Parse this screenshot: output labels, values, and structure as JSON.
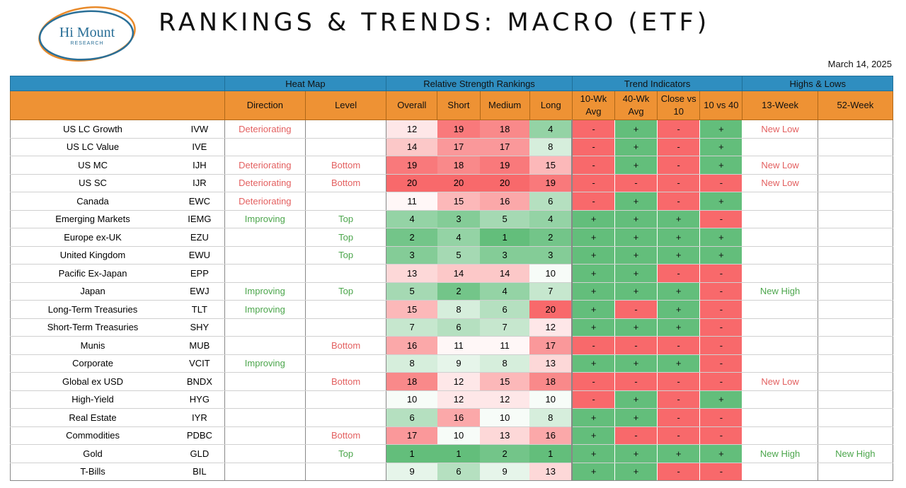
{
  "brand": {
    "logo_text": "Hi Mount",
    "logo_sub": "RESEARCH"
  },
  "title": "RANKINGS & TRENDS: MACRO (ETF)",
  "date": "March 14, 2025",
  "colors": {
    "header_blue": "#2f8ec0",
    "header_orange": "#ee9234",
    "positive_green": "#63be7b",
    "negative_red": "#f8696b",
    "text_positive": "#4ca64c",
    "text_negative": "#e36060"
  },
  "groups": {
    "heat_map": "Heat Map",
    "rs_rankings": "Relative Strength Rankings",
    "trend": "Trend Indicators",
    "highs_lows": "Highs & Lows"
  },
  "columns": {
    "direction": "Direction",
    "level": "Level",
    "overall": "Overall",
    "short": "Short",
    "medium": "Medium",
    "long": "Long",
    "wk10": "10-Wk Avg",
    "wk40": "40-Wk Avg",
    "close10": "Close vs 10",
    "t10v40": "10 vs 40",
    "week13": "13-Week",
    "week52": "52-Week"
  },
  "rank_scale": {
    "min": 1,
    "max": 20
  },
  "rows": [
    {
      "name": "US LC Growth",
      "ticker": "IVW",
      "direction": "Deteriorating",
      "level": "",
      "overall": 12,
      "short": 19,
      "medium": 18,
      "long": 4,
      "wk10": "-",
      "wk40": "+",
      "close10": "-",
      "t10v40": "+",
      "week13": "New Low",
      "week52": ""
    },
    {
      "name": "US LC Value",
      "ticker": "IVE",
      "direction": "",
      "level": "",
      "overall": 14,
      "short": 17,
      "medium": 17,
      "long": 8,
      "wk10": "-",
      "wk40": "+",
      "close10": "-",
      "t10v40": "+",
      "week13": "",
      "week52": ""
    },
    {
      "name": "US MC",
      "ticker": "IJH",
      "direction": "Deteriorating",
      "level": "Bottom",
      "overall": 19,
      "short": 18,
      "medium": 19,
      "long": 15,
      "wk10": "-",
      "wk40": "+",
      "close10": "-",
      "t10v40": "+",
      "week13": "New Low",
      "week52": ""
    },
    {
      "name": "US SC",
      "ticker": "IJR",
      "direction": "Deteriorating",
      "level": "Bottom",
      "overall": 20,
      "short": 20,
      "medium": 20,
      "long": 19,
      "wk10": "-",
      "wk40": "-",
      "close10": "-",
      "t10v40": "-",
      "week13": "New Low",
      "week52": ""
    },
    {
      "name": "Canada",
      "ticker": "EWC",
      "direction": "Deteriorating",
      "level": "",
      "overall": 11,
      "short": 15,
      "medium": 16,
      "long": 6,
      "wk10": "-",
      "wk40": "+",
      "close10": "-",
      "t10v40": "+",
      "week13": "",
      "week52": ""
    },
    {
      "name": "Emerging Markets",
      "ticker": "IEMG",
      "direction": "Improving",
      "level": "Top",
      "overall": 4,
      "short": 3,
      "medium": 5,
      "long": 4,
      "wk10": "+",
      "wk40": "+",
      "close10": "+",
      "t10v40": "-",
      "week13": "",
      "week52": ""
    },
    {
      "name": "Europe ex-UK",
      "ticker": "EZU",
      "direction": "",
      "level": "Top",
      "overall": 2,
      "short": 4,
      "medium": 1,
      "long": 2,
      "wk10": "+",
      "wk40": "+",
      "close10": "+",
      "t10v40": "+",
      "week13": "",
      "week52": ""
    },
    {
      "name": "United Kingdom",
      "ticker": "EWU",
      "direction": "",
      "level": "Top",
      "overall": 3,
      "short": 5,
      "medium": 3,
      "long": 3,
      "wk10": "+",
      "wk40": "+",
      "close10": "+",
      "t10v40": "+",
      "week13": "",
      "week52": ""
    },
    {
      "name": "Pacific Ex-Japan",
      "ticker": "EPP",
      "direction": "",
      "level": "",
      "overall": 13,
      "short": 14,
      "medium": 14,
      "long": 10,
      "wk10": "+",
      "wk40": "+",
      "close10": "-",
      "t10v40": "-",
      "week13": "",
      "week52": ""
    },
    {
      "name": "Japan",
      "ticker": "EWJ",
      "direction": "Improving",
      "level": "Top",
      "overall": 5,
      "short": 2,
      "medium": 4,
      "long": 7,
      "wk10": "+",
      "wk40": "+",
      "close10": "+",
      "t10v40": "-",
      "week13": "New High",
      "week52": ""
    },
    {
      "name": "Long-Term Treasuries",
      "ticker": "TLT",
      "direction": "Improving",
      "level": "",
      "overall": 15,
      "short": 8,
      "medium": 6,
      "long": 20,
      "wk10": "+",
      "wk40": "-",
      "close10": "+",
      "t10v40": "-",
      "week13": "",
      "week52": ""
    },
    {
      "name": "Short-Term Treasuries",
      "ticker": "SHY",
      "direction": "",
      "level": "",
      "overall": 7,
      "short": 6,
      "medium": 7,
      "long": 12,
      "wk10": "+",
      "wk40": "+",
      "close10": "+",
      "t10v40": "-",
      "week13": "",
      "week52": ""
    },
    {
      "name": "Munis",
      "ticker": "MUB",
      "direction": "",
      "level": "Bottom",
      "overall": 16,
      "short": 11,
      "medium": 11,
      "long": 17,
      "wk10": "-",
      "wk40": "-",
      "close10": "-",
      "t10v40": "-",
      "week13": "",
      "week52": ""
    },
    {
      "name": "Corporate",
      "ticker": "VCIT",
      "direction": "Improving",
      "level": "",
      "overall": 8,
      "short": 9,
      "medium": 8,
      "long": 13,
      "wk10": "+",
      "wk40": "+",
      "close10": "+",
      "t10v40": "-",
      "week13": "",
      "week52": ""
    },
    {
      "name": "Global ex USD",
      "ticker": "BNDX",
      "direction": "",
      "level": "Bottom",
      "overall": 18,
      "short": 12,
      "medium": 15,
      "long": 18,
      "wk10": "-",
      "wk40": "-",
      "close10": "-",
      "t10v40": "-",
      "week13": "New Low",
      "week52": ""
    },
    {
      "name": "High-Yield",
      "ticker": "HYG",
      "direction": "",
      "level": "",
      "overall": 10,
      "short": 12,
      "medium": 12,
      "long": 10,
      "wk10": "-",
      "wk40": "+",
      "close10": "-",
      "t10v40": "+",
      "week13": "",
      "week52": ""
    },
    {
      "name": "Real Estate",
      "ticker": "IYR",
      "direction": "",
      "level": "",
      "overall": 6,
      "short": 16,
      "medium": 10,
      "long": 8,
      "wk10": "+",
      "wk40": "+",
      "close10": "-",
      "t10v40": "-",
      "week13": "",
      "week52": ""
    },
    {
      "name": "Commodities",
      "ticker": "PDBC",
      "direction": "",
      "level": "Bottom",
      "overall": 17,
      "short": 10,
      "medium": 13,
      "long": 16,
      "wk10": "+",
      "wk40": "-",
      "close10": "-",
      "t10v40": "-",
      "week13": "",
      "week52": ""
    },
    {
      "name": "Gold",
      "ticker": "GLD",
      "direction": "",
      "level": "Top",
      "overall": 1,
      "short": 1,
      "medium": 2,
      "long": 1,
      "wk10": "+",
      "wk40": "+",
      "close10": "+",
      "t10v40": "+",
      "week13": "New High",
      "week52": "New High"
    },
    {
      "name": "T-Bills",
      "ticker": "BIL",
      "direction": "",
      "level": "",
      "overall": 9,
      "short": 6,
      "medium": 9,
      "long": 13,
      "wk10": "+",
      "wk40": "+",
      "close10": "-",
      "t10v40": "-",
      "week13": "",
      "week52": ""
    }
  ]
}
